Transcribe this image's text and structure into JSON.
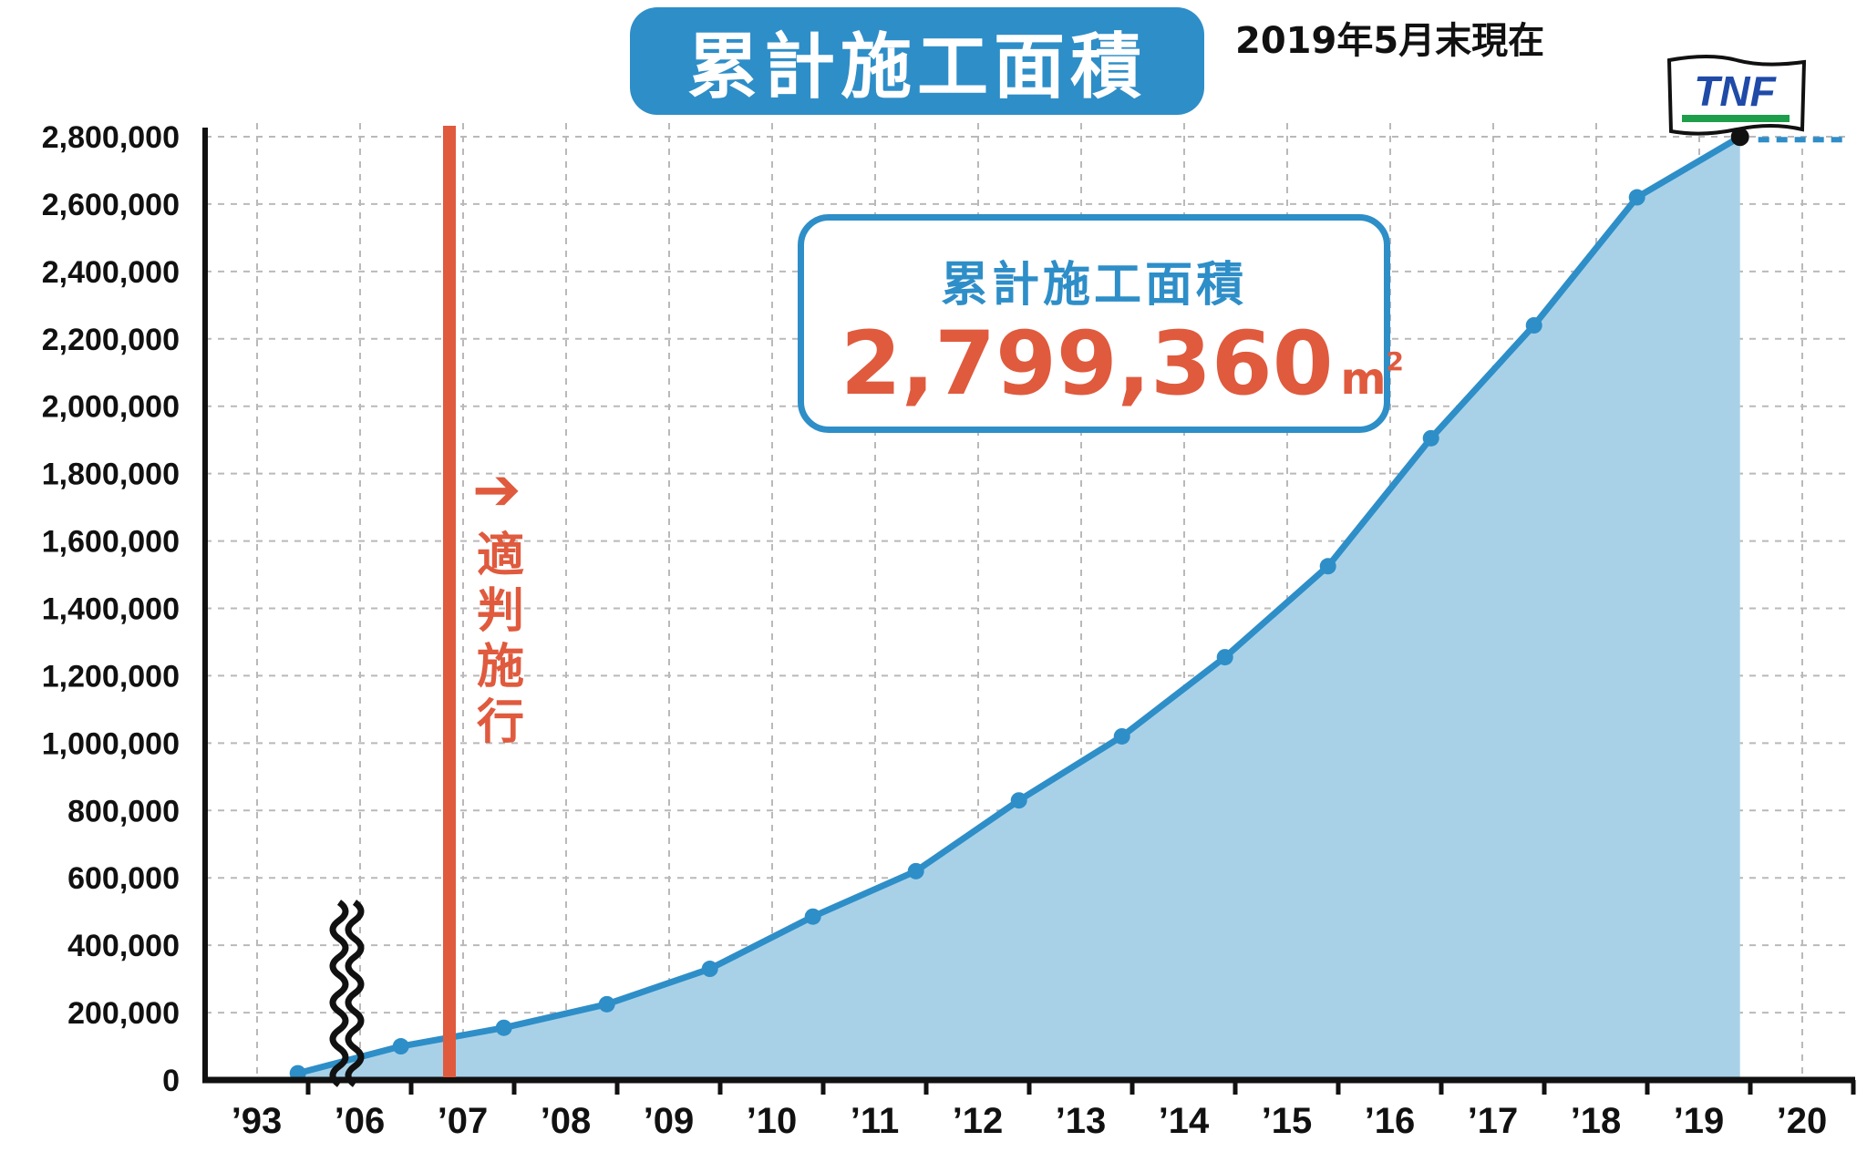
{
  "header": {
    "title": "累計施工面積",
    "as_of": "2019年5月末現在"
  },
  "callout": {
    "title": "累計施工面積",
    "value": "2,799,360",
    "unit": "m",
    "unit_sup": "2"
  },
  "annotation": {
    "label_chars": [
      "適",
      "判",
      "施",
      "行"
    ],
    "arrow": "➔"
  },
  "logo": {
    "text": "TNF",
    "icon": "flag-icon"
  },
  "colors": {
    "accent": "#2e8ec8",
    "fill": "#a8d1e8",
    "line": "#2e8ec8",
    "annotation": "#e05a3e",
    "logo_text": "#1f4aa8",
    "logo_stripe": "#1e9e4a"
  },
  "chart_data": {
    "type": "area",
    "x": [
      "’06",
      "’07",
      "’08",
      "’09",
      "’10",
      "’11",
      "’12",
      "’13",
      "’14",
      "’15",
      "’16",
      "’17",
      "’18",
      "’19"
    ],
    "series": [
      {
        "values": [
          100000,
          155000,
          225000,
          330000,
          485000,
          620000,
          830000,
          1020000,
          1255000,
          1525000,
          1905000,
          2240000,
          2620000,
          2799360
        ]
      }
    ],
    "start_value": 20000,
    "x_tick_labels": [
      "’93",
      "’06",
      "’07",
      "’08",
      "’09",
      "’10",
      "’11",
      "’12",
      "’13",
      "’14",
      "’15",
      "’16",
      "’17",
      "’18",
      "’19",
      "’20"
    ],
    "y_tick_labels": [
      "0",
      "200,000",
      "400,000",
      "600,000",
      "800,000",
      "1,000,000",
      "1,200,000",
      "1,400,000",
      "1,600,000",
      "1,800,000",
      "2,000,000",
      "2,200,000",
      "2,400,000",
      "2,600,000",
      "2,800,000"
    ],
    "ylim": [
      0,
      2800000
    ],
    "axis_break": "between ’93 and ’06",
    "vertical_marker": "between ’06 and ’07",
    "dashed_extension": "’19 to ’20",
    "grid": true,
    "title": "",
    "xlabel": "",
    "ylabel": ""
  }
}
